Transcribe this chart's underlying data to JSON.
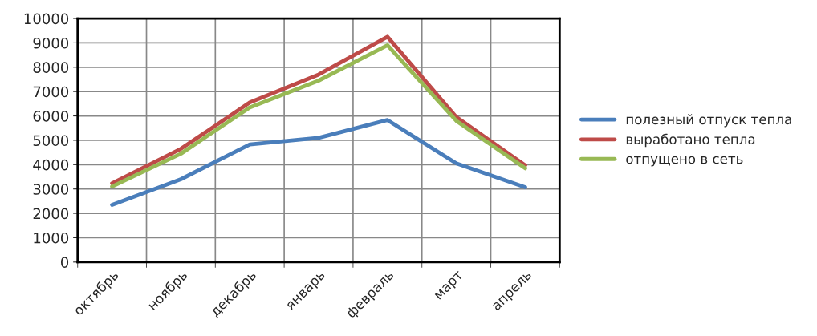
{
  "chart_data": {
    "type": "line",
    "categories": [
      "октябрь",
      "ноябрь",
      "декабрь",
      "январь",
      "февраль",
      "март",
      "апрель"
    ],
    "series": [
      {
        "name": "полезный отпуск тепла",
        "color": "#4a7ebb",
        "values": [
          2350,
          3400,
          4830,
          5100,
          5830,
          4050,
          3070
        ]
      },
      {
        "name": "выработано тепла",
        "color": "#be4b48",
        "values": [
          3230,
          4650,
          6550,
          7700,
          9250,
          5950,
          3970
        ]
      },
      {
        "name": "отпущено в сеть",
        "color": "#98b954",
        "values": [
          3100,
          4450,
          6350,
          7450,
          8900,
          5800,
          3850
        ]
      }
    ],
    "ylim": [
      0,
      10000
    ],
    "yticks": [
      0,
      1000,
      2000,
      3000,
      4000,
      5000,
      6000,
      7000,
      8000,
      9000,
      10000
    ],
    "grid": true,
    "legend": "right",
    "marker": "none",
    "line_style": "solid"
  }
}
